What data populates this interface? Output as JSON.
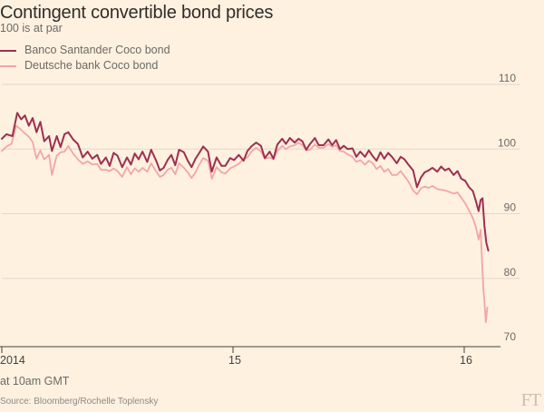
{
  "header": {
    "title": "Contingent convertible bond prices",
    "subtitle": "100 is at par"
  },
  "footer": {
    "note": "at 10am GMT",
    "source": "Source: Bloomberg/Rochelle Toplensky",
    "logo": "FT"
  },
  "colors": {
    "background": "#fff1e0",
    "santander": "#9e2f50",
    "deutsche": "#f2a5a7",
    "grid": "#e3d7c7",
    "axis": "#43423e"
  },
  "chart_data": {
    "type": "line",
    "title": "Contingent convertible bond prices",
    "subtitle": "100 is at par",
    "xlabel": "",
    "ylabel": "",
    "x_unit": "months since Jan 2014",
    "xlim": [
      0,
      25.25
    ],
    "ylim": [
      70,
      112
    ],
    "y_ticks": [
      70,
      80,
      90,
      100,
      110
    ],
    "x_ticks": [
      {
        "x": 0,
        "label": "2014"
      },
      {
        "x": 12,
        "label": "15"
      },
      {
        "x": 24,
        "label": "16"
      }
    ],
    "grid": true,
    "legend_position": "top-left",
    "series": [
      {
        "name": "Banco Santander Coco bond",
        "color": "#9e2f50",
        "points": [
          [
            0.0,
            101.6
          ],
          [
            0.25,
            102.3
          ],
          [
            0.55,
            102.0
          ],
          [
            0.8,
            105.6
          ],
          [
            1.0,
            104.6
          ],
          [
            1.2,
            105.2
          ],
          [
            1.4,
            103.6
          ],
          [
            1.6,
            104.8
          ],
          [
            1.8,
            102.6
          ],
          [
            2.0,
            104.2
          ],
          [
            2.2,
            101.2
          ],
          [
            2.45,
            102.0
          ],
          [
            2.6,
            99.7
          ],
          [
            2.85,
            102.0
          ],
          [
            3.05,
            100.3
          ],
          [
            3.25,
            102.3
          ],
          [
            3.45,
            102.6
          ],
          [
            3.7,
            101.5
          ],
          [
            3.95,
            100.8
          ],
          [
            4.2,
            98.7
          ],
          [
            4.45,
            99.6
          ],
          [
            4.7,
            98.5
          ],
          [
            4.95,
            99.1
          ],
          [
            5.15,
            97.7
          ],
          [
            5.4,
            98.7
          ],
          [
            5.6,
            97.4
          ],
          [
            5.8,
            99.4
          ],
          [
            6.0,
            99.0
          ],
          [
            6.25,
            97.2
          ],
          [
            6.5,
            98.7
          ],
          [
            6.7,
            97.6
          ],
          [
            6.9,
            99.3
          ],
          [
            7.1,
            98.4
          ],
          [
            7.3,
            99.6
          ],
          [
            7.55,
            98.0
          ],
          [
            7.75,
            99.9
          ],
          [
            8.0,
            98.3
          ],
          [
            8.2,
            96.7
          ],
          [
            8.4,
            97.1
          ],
          [
            8.6,
            98.3
          ],
          [
            8.8,
            99.1
          ],
          [
            9.0,
            97.5
          ],
          [
            9.2,
            99.9
          ],
          [
            9.45,
            99.5
          ],
          [
            9.65,
            98.2
          ],
          [
            9.85,
            97.2
          ],
          [
            10.05,
            98.5
          ],
          [
            10.25,
            99.4
          ],
          [
            10.45,
            100.4
          ],
          [
            10.7,
            99.6
          ],
          [
            10.9,
            96.5
          ],
          [
            11.15,
            98.7
          ],
          [
            11.4,
            97.4
          ],
          [
            11.6,
            97.4
          ],
          [
            11.85,
            98.6
          ],
          [
            12.05,
            98.3
          ],
          [
            12.3,
            99.1
          ],
          [
            12.55,
            98.2
          ],
          [
            12.75,
            99.7
          ],
          [
            12.95,
            100.4
          ],
          [
            13.2,
            101.0
          ],
          [
            13.45,
            100.5
          ],
          [
            13.65,
            98.6
          ],
          [
            13.9,
            99.6
          ],
          [
            14.1,
            98.5
          ],
          [
            14.3,
            100.7
          ],
          [
            14.55,
            101.6
          ],
          [
            14.75,
            100.8
          ],
          [
            14.95,
            101.7
          ],
          [
            15.2,
            101.0
          ],
          [
            15.4,
            101.6
          ],
          [
            15.6,
            101.2
          ],
          [
            15.8,
            99.9
          ],
          [
            16.0,
            100.8
          ],
          [
            16.25,
            101.7
          ],
          [
            16.45,
            100.6
          ],
          [
            16.7,
            100.6
          ],
          [
            16.95,
            101.5
          ],
          [
            17.15,
            100.6
          ],
          [
            17.35,
            101.4
          ],
          [
            17.55,
            100.0
          ],
          [
            17.75,
            100.5
          ],
          [
            17.95,
            100.0
          ],
          [
            18.2,
            100.1
          ],
          [
            18.4,
            98.8
          ],
          [
            18.6,
            99.6
          ],
          [
            18.85,
            98.8
          ],
          [
            19.05,
            99.8
          ],
          [
            19.25,
            98.9
          ],
          [
            19.45,
            98.2
          ],
          [
            19.65,
            99.5
          ],
          [
            19.85,
            98.5
          ],
          [
            20.05,
            99.4
          ],
          [
            20.25,
            98.8
          ],
          [
            20.5,
            97.8
          ],
          [
            20.7,
            98.8
          ],
          [
            20.9,
            98.4
          ],
          [
            21.1,
            97.6
          ],
          [
            21.35,
            96.7
          ],
          [
            21.55,
            94.1
          ],
          [
            21.75,
            95.6
          ],
          [
            21.95,
            96.4
          ],
          [
            22.15,
            96.7
          ],
          [
            22.35,
            97.1
          ],
          [
            22.6,
            96.5
          ],
          [
            22.8,
            97.3
          ],
          [
            23.0,
            96.7
          ],
          [
            23.2,
            97.0
          ],
          [
            23.45,
            96.0
          ],
          [
            23.65,
            96.6
          ],
          [
            23.85,
            95.4
          ],
          [
            24.05,
            95.1
          ],
          [
            24.25,
            94.1
          ],
          [
            24.45,
            93.5
          ],
          [
            24.6,
            92.0
          ],
          [
            24.75,
            90.4
          ],
          [
            24.85,
            92.1
          ],
          [
            24.95,
            92.4
          ],
          [
            25.05,
            88.1
          ],
          [
            25.15,
            85.5
          ],
          [
            25.25,
            84.3
          ]
        ]
      },
      {
        "name": "Deutsche bank Coco bond",
        "color": "#f2a5a7",
        "points": [
          [
            0.0,
            99.7
          ],
          [
            0.25,
            100.4
          ],
          [
            0.5,
            100.8
          ],
          [
            0.75,
            103.6
          ],
          [
            1.0,
            103.0
          ],
          [
            1.2,
            102.4
          ],
          [
            1.4,
            101.9
          ],
          [
            1.6,
            101.1
          ],
          [
            1.8,
            98.5
          ],
          [
            2.0,
            99.8
          ],
          [
            2.2,
            98.4
          ],
          [
            2.45,
            99.1
          ],
          [
            2.6,
            96.0
          ],
          [
            2.85,
            99.0
          ],
          [
            3.05,
            99.5
          ],
          [
            3.25,
            99.6
          ],
          [
            3.45,
            100.5
          ],
          [
            3.7,
            99.3
          ],
          [
            3.95,
            98.4
          ],
          [
            4.2,
            97.7
          ],
          [
            4.45,
            98.1
          ],
          [
            4.7,
            97.6
          ],
          [
            4.95,
            97.7
          ],
          [
            5.15,
            96.8
          ],
          [
            5.4,
            96.8
          ],
          [
            5.6,
            96.6
          ],
          [
            5.8,
            97.0
          ],
          [
            6.0,
            96.6
          ],
          [
            6.25,
            95.7
          ],
          [
            6.5,
            97.2
          ],
          [
            6.7,
            96.1
          ],
          [
            6.9,
            97.0
          ],
          [
            7.1,
            96.5
          ],
          [
            7.3,
            97.1
          ],
          [
            7.55,
            96.5
          ],
          [
            7.75,
            97.8
          ],
          [
            8.0,
            96.6
          ],
          [
            8.2,
            95.7
          ],
          [
            8.4,
            96.0
          ],
          [
            8.6,
            96.8
          ],
          [
            8.8,
            97.1
          ],
          [
            9.0,
            96.1
          ],
          [
            9.2,
            97.8
          ],
          [
            9.45,
            97.1
          ],
          [
            9.65,
            96.4
          ],
          [
            9.85,
            95.5
          ],
          [
            10.05,
            96.4
          ],
          [
            10.25,
            97.6
          ],
          [
            10.45,
            98.6
          ],
          [
            10.7,
            98.2
          ],
          [
            10.9,
            95.4
          ],
          [
            11.15,
            97.2
          ],
          [
            11.4,
            96.4
          ],
          [
            11.6,
            96.2
          ],
          [
            11.85,
            97.0
          ],
          [
            12.05,
            97.3
          ],
          [
            12.3,
            97.7
          ],
          [
            12.55,
            98.5
          ],
          [
            12.75,
            98.7
          ],
          [
            12.95,
            99.6
          ],
          [
            13.2,
            100.2
          ],
          [
            13.45,
            99.6
          ],
          [
            13.65,
            98.5
          ],
          [
            13.9,
            98.7
          ],
          [
            14.1,
            98.4
          ],
          [
            14.3,
            99.7
          ],
          [
            14.55,
            100.5
          ],
          [
            14.75,
            100.0
          ],
          [
            14.95,
            100.4
          ],
          [
            15.2,
            100.6
          ],
          [
            15.4,
            101.0
          ],
          [
            15.6,
            100.6
          ],
          [
            15.8,
            99.8
          ],
          [
            16.0,
            99.9
          ],
          [
            16.25,
            100.7
          ],
          [
            16.45,
            100.2
          ],
          [
            16.7,
            100.2
          ],
          [
            16.95,
            100.8
          ],
          [
            17.15,
            100.3
          ],
          [
            17.35,
            100.6
          ],
          [
            17.55,
            99.7
          ],
          [
            17.75,
            99.6
          ],
          [
            17.95,
            99.2
          ],
          [
            18.2,
            98.8
          ],
          [
            18.4,
            98.0
          ],
          [
            18.6,
            98.3
          ],
          [
            18.85,
            97.6
          ],
          [
            19.05,
            98.2
          ],
          [
            19.25,
            97.8
          ],
          [
            19.45,
            96.9
          ],
          [
            19.65,
            97.4
          ],
          [
            19.85,
            96.5
          ],
          [
            20.05,
            96.9
          ],
          [
            20.25,
            96.0
          ],
          [
            20.5,
            96.0
          ],
          [
            20.7,
            96.6
          ],
          [
            20.9,
            95.8
          ],
          [
            21.1,
            95.0
          ],
          [
            21.35,
            93.6
          ],
          [
            21.55,
            93.0
          ],
          [
            21.75,
            93.9
          ],
          [
            21.95,
            94.2
          ],
          [
            22.15,
            94.0
          ],
          [
            22.35,
            94.3
          ],
          [
            22.6,
            93.8
          ],
          [
            22.8,
            93.7
          ],
          [
            23.0,
            93.6
          ],
          [
            23.2,
            93.4
          ],
          [
            23.45,
            93.1
          ],
          [
            23.65,
            93.3
          ],
          [
            23.85,
            92.5
          ],
          [
            24.05,
            91.6
          ],
          [
            24.25,
            90.5
          ],
          [
            24.45,
            89.3
          ],
          [
            24.6,
            88.0
          ],
          [
            24.75,
            86.0
          ],
          [
            24.85,
            87.5
          ],
          [
            24.95,
            81.0
          ],
          [
            25.0,
            78.0
          ],
          [
            25.05,
            76.5
          ],
          [
            25.12,
            73.2
          ],
          [
            25.2,
            75.5
          ]
        ]
      }
    ]
  }
}
